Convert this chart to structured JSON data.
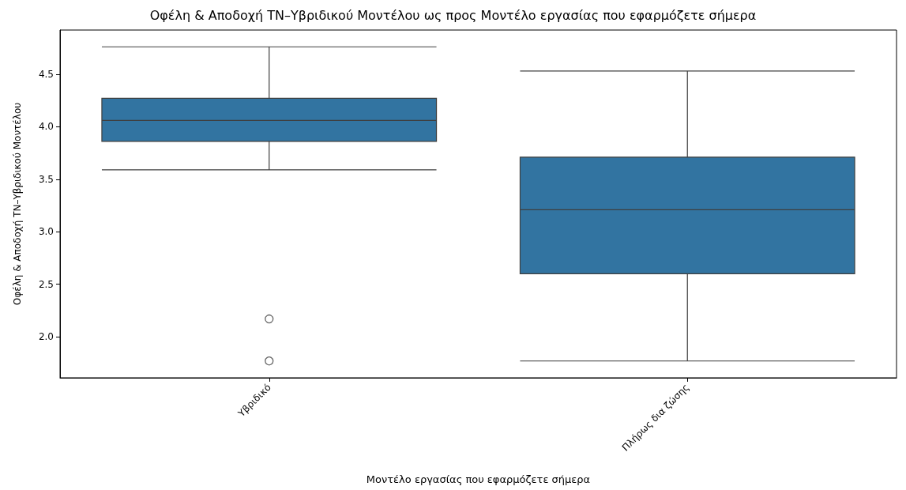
{
  "chart_data": {
    "type": "box",
    "title": "Οφέλη & Αποδοχή ΤΝ–Υβριδικού Μοντέλου ως προς Μοντέλο εργασίας που εφαρμόζετε σήμερα",
    "xlabel": "Μοντέλο εργασίας που εφαρμόζετε σήμερα",
    "ylabel": "Οφέλη & Αποδοχή ΤΝ–Υβριδικού Μοντέλου",
    "categories": [
      "Υβριδικό",
      "Πλήρως δια ζώσης"
    ],
    "color": "#3274a1",
    "boxes": [
      {
        "low": 3.59,
        "q1": 3.86,
        "median": 4.06,
        "q3": 4.27,
        "high": 4.76,
        "outliers": [
          2.17,
          1.77
        ]
      },
      {
        "low": 1.77,
        "q1": 2.6,
        "median": 3.21,
        "q3": 3.71,
        "high": 4.53
      }
    ],
    "ylim": [
      1.61,
      4.92
    ],
    "yticks": [
      {
        "value": 2,
        "label": "2.0"
      },
      2.5,
      {
        "value": 3,
        "label": "3.0"
      },
      3.5,
      {
        "value": 4,
        "label": "4.0"
      },
      4.5
    ],
    "grid": false
  }
}
